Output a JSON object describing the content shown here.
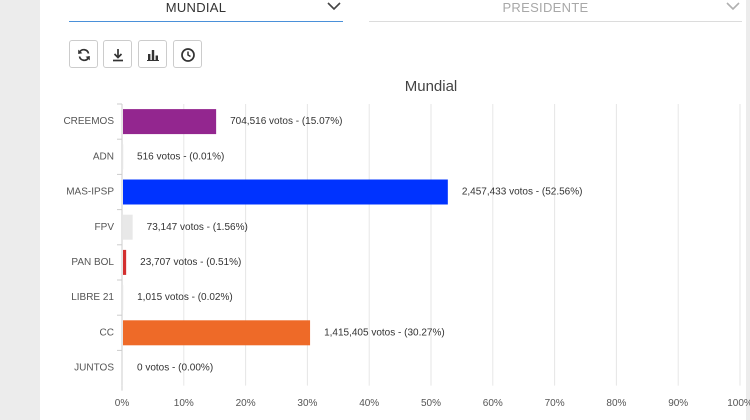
{
  "selectors": {
    "scope": {
      "value": "MUNDIAL"
    },
    "election": {
      "value": "PRESIDENTE"
    }
  },
  "toolbar": {
    "buttons": [
      {
        "icon": "refresh-icon"
      },
      {
        "icon": "download-icon"
      },
      {
        "icon": "bar-chart-icon"
      },
      {
        "icon": "clock-icon"
      }
    ]
  },
  "colors": {
    "select_active_border": "#4a90d9",
    "grid": "#e6e6e6"
  },
  "chart_data": {
    "type": "bar",
    "orientation": "horizontal",
    "title": "Mundial",
    "categories": [
      "CREEMOS",
      "ADN",
      "MAS-IPSP",
      "FPV",
      "PAN BOL",
      "LIBRE 21",
      "CC",
      "JUNTOS"
    ],
    "values": [
      15.07,
      0.01,
      52.56,
      1.56,
      0.51,
      0.02,
      30.27,
      0.0
    ],
    "votes": [
      "704,516",
      "516",
      "2,457,433",
      "73,147",
      "23,707",
      "1,015",
      "1,415,405",
      "0"
    ],
    "data_labels": [
      "704,516 votos - (15.07%)",
      "516 votos - (0.01%)",
      "2,457,433 votos - (52.56%)",
      "73,147 votos - (1.56%)",
      "23,707 votos - (0.51%)",
      "1,015 votos - (0.02%)",
      "1,415,405 votos - (30.27%)",
      "0 votos - (0.00%)"
    ],
    "colors": [
      "#93268f",
      "#9e9e9e",
      "#0033ff",
      "#e8e8e8",
      "#d32f2f",
      "#cfcfcf",
      "#ee6a28",
      "#9e9e9e"
    ],
    "xlim": [
      0,
      100
    ],
    "xticks": [
      "0%",
      "10%",
      "20%",
      "30%",
      "40%",
      "50%",
      "60%",
      "70%",
      "80%",
      "90%",
      "100%"
    ],
    "grid": true,
    "xlabel": "",
    "ylabel": ""
  }
}
